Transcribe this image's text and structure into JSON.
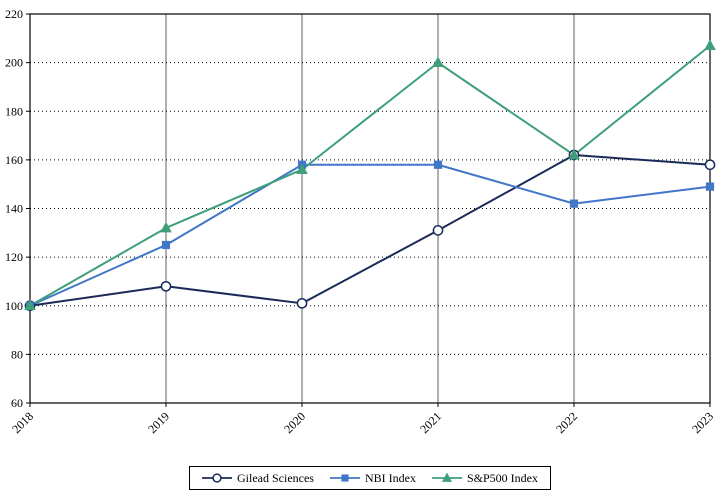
{
  "chart_data": {
    "type": "line",
    "title": "",
    "xlabel": "",
    "ylabel": "",
    "categories": [
      "2018",
      "2019",
      "2020",
      "2021",
      "2022",
      "2023"
    ],
    "series": [
      {
        "name": "Gilead Sciences",
        "marker": "circle",
        "color": "#1b2a59",
        "marker_fill": "#ffffff",
        "values": [
          100,
          108,
          101,
          131,
          162,
          158
        ]
      },
      {
        "name": "NBI Index",
        "marker": "square",
        "color": "#4176c9",
        "marker_fill": "#4176c9",
        "values": [
          100,
          125,
          158,
          158,
          142,
          149
        ]
      },
      {
        "name": "S&P500 Index",
        "marker": "triangle",
        "color": "#3f9f79",
        "marker_fill": "#3f9f79",
        "values": [
          100,
          132,
          156,
          200,
          162,
          207
        ]
      }
    ],
    "ylim": [
      60,
      220
    ],
    "ytick_step": 20,
    "grid": {
      "horizontal": "dotted",
      "vertical": "solid"
    },
    "legend_position": "bottom-center",
    "axis_color": "#000000",
    "background": "#ffffff"
  }
}
